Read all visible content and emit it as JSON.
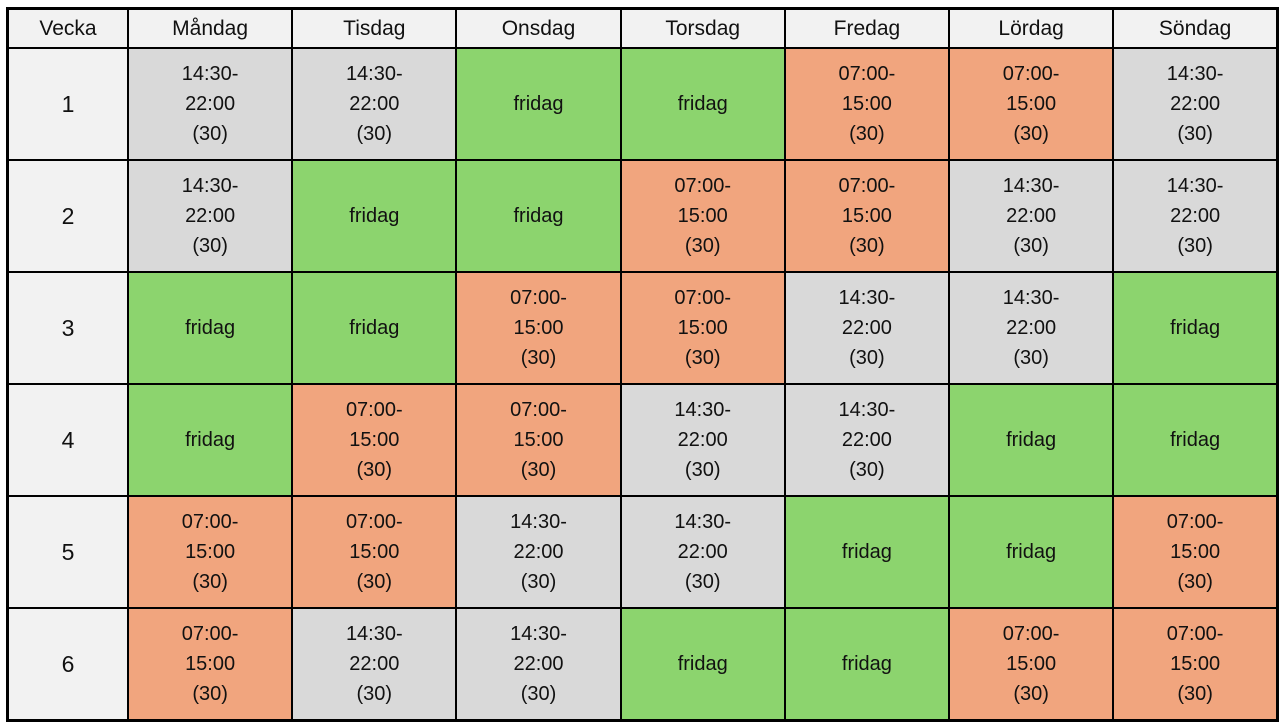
{
  "table": {
    "header": [
      "Vecka",
      "Måndag",
      "Tisdag",
      "Onsdag",
      "Torsdag",
      "Fredag",
      "Lördag",
      "Söndag"
    ],
    "shift_types": {
      "late": {
        "name": "late-shift",
        "label": "14:30-\n22:00\n(30)",
        "color": "#D9D9D9"
      },
      "early": {
        "name": "early-shift",
        "label": "07:00-\n15:00\n(30)",
        "color": "#F1A57E"
      },
      "off": {
        "name": "day-off",
        "label": "fridag",
        "color": "#8CD46E"
      }
    },
    "rows": [
      {
        "week": "1",
        "shifts": [
          "late",
          "late",
          "off",
          "off",
          "early",
          "early",
          "late"
        ]
      },
      {
        "week": "2",
        "shifts": [
          "late",
          "off",
          "off",
          "early",
          "early",
          "late",
          "late"
        ]
      },
      {
        "week": "3",
        "shifts": [
          "off",
          "off",
          "early",
          "early",
          "late",
          "late",
          "off"
        ]
      },
      {
        "week": "4",
        "shifts": [
          "off",
          "early",
          "early",
          "late",
          "late",
          "off",
          "off"
        ]
      },
      {
        "week": "5",
        "shifts": [
          "early",
          "early",
          "late",
          "late",
          "off",
          "off",
          "early"
        ]
      },
      {
        "week": "6",
        "shifts": [
          "early",
          "late",
          "late",
          "off",
          "off",
          "early",
          "early"
        ]
      }
    ]
  },
  "colors": {
    "header_bg": "#F2F2F2",
    "week_column_bg": "#F2F2F2",
    "late_shift_bg": "#D9D9D9",
    "early_shift_bg": "#F1A57E",
    "day_off_bg": "#8CD46E",
    "border": "#000000",
    "text": "#111111"
  }
}
